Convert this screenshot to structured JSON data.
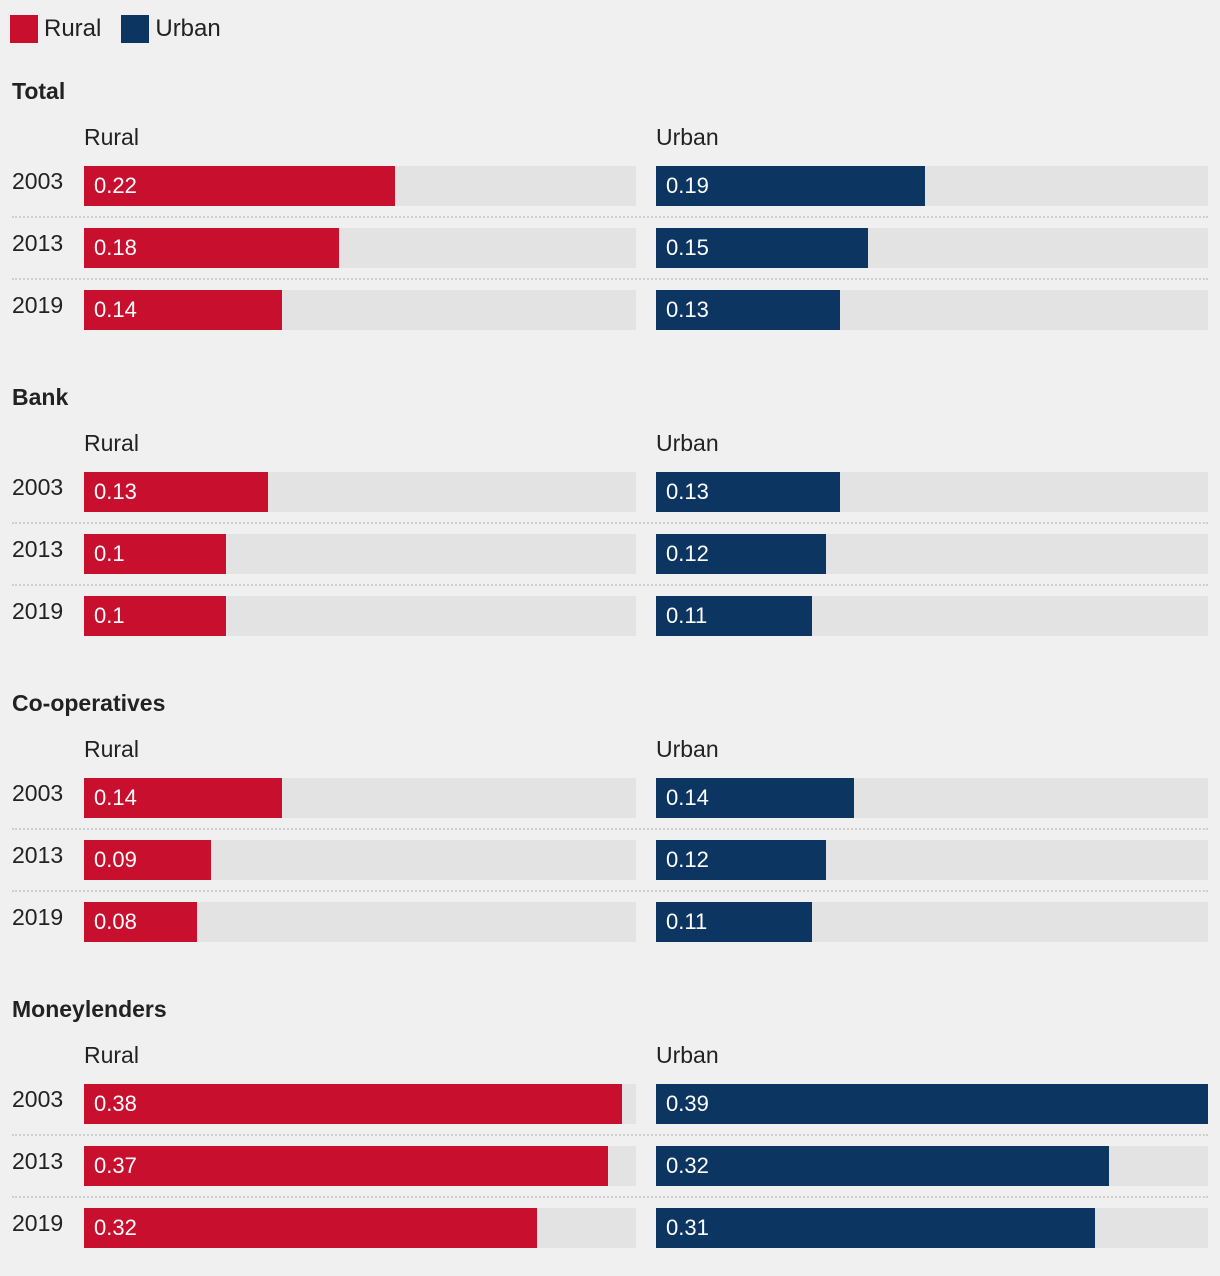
{
  "legend": {
    "rural_label": "Rural",
    "urban_label": "Urban"
  },
  "colors": {
    "rural": "#c8102e",
    "urban": "#0c3661",
    "track": "#e3e3e3"
  },
  "chart_data": {
    "type": "bar",
    "orientation": "horizontal",
    "layout": "small-multiples",
    "xlim": [
      0,
      0.39
    ],
    "years": [
      "2003",
      "2013",
      "2019"
    ],
    "panels": [
      {
        "title": "Total",
        "rural_label": "Rural",
        "urban_label": "Urban",
        "rows": [
          {
            "year": "2003",
            "rural": 0.22,
            "urban": 0.19
          },
          {
            "year": "2013",
            "rural": 0.18,
            "urban": 0.15
          },
          {
            "year": "2019",
            "rural": 0.14,
            "urban": 0.13
          }
        ]
      },
      {
        "title": "Bank",
        "rural_label": "Rural",
        "urban_label": "Urban",
        "rows": [
          {
            "year": "2003",
            "rural": 0.13,
            "urban": 0.13
          },
          {
            "year": "2013",
            "rural": 0.1,
            "urban": 0.12
          },
          {
            "year": "2019",
            "rural": 0.1,
            "urban": 0.11
          }
        ]
      },
      {
        "title": "Co-operatives",
        "rural_label": "Rural",
        "urban_label": "Urban",
        "rows": [
          {
            "year": "2003",
            "rural": 0.14,
            "urban": 0.14
          },
          {
            "year": "2013",
            "rural": 0.09,
            "urban": 0.12
          },
          {
            "year": "2019",
            "rural": 0.08,
            "urban": 0.11
          }
        ]
      },
      {
        "title": "Moneylenders",
        "rural_label": "Rural",
        "urban_label": "Urban",
        "rows": [
          {
            "year": "2003",
            "rural": 0.38,
            "urban": 0.39
          },
          {
            "year": "2013",
            "rural": 0.37,
            "urban": 0.32
          },
          {
            "year": "2019",
            "rural": 0.32,
            "urban": 0.31
          }
        ]
      }
    ]
  }
}
